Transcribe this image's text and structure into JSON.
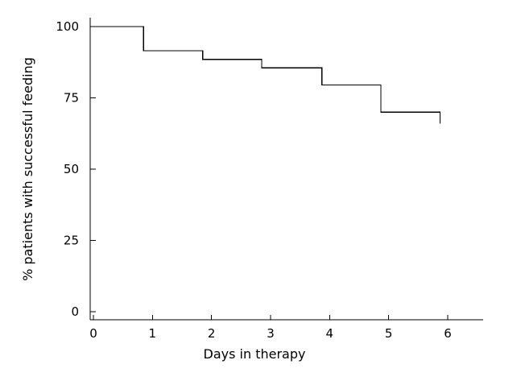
{
  "chart_data": {
    "type": "line",
    "step": true,
    "xlabel": "Days in therapy",
    "ylabel": "% patients with successful feeding",
    "xlim": [
      0,
      6.6
    ],
    "ylim": [
      0,
      100
    ],
    "xticks": [
      0,
      1,
      2,
      3,
      4,
      5,
      6
    ],
    "yticks": [
      0,
      25,
      50,
      75,
      100
    ],
    "grid": false,
    "legend": "none",
    "line_color": "#000000",
    "series": [
      {
        "x": [
          0,
          0.85,
          1.85,
          2.85,
          3.87,
          4.87,
          5.87
        ],
        "y": [
          100,
          91.5,
          88.5,
          85.5,
          79.5,
          70,
          66
        ]
      }
    ]
  }
}
